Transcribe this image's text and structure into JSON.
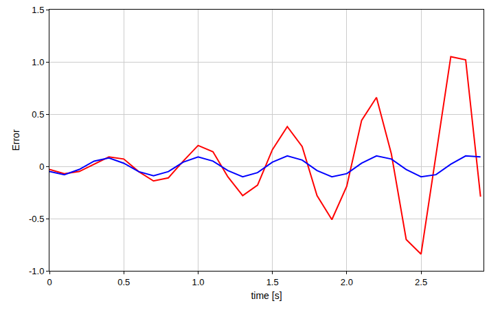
{
  "chart_data": {
    "type": "line",
    "x_label": "time [s]",
    "y_label": "Error",
    "x": [
      0,
      0.1,
      0.2,
      0.3,
      0.4,
      0.5,
      0.6,
      0.7,
      0.8,
      0.9,
      1.0,
      1.1,
      1.2,
      1.3,
      1.4,
      1.5,
      1.6,
      1.7,
      1.8,
      1.9,
      2.0,
      2.1,
      2.2,
      2.3,
      2.4,
      2.5,
      2.6,
      2.7,
      2.8,
      2.9
    ],
    "series": [
      {
        "color": "#ff0000",
        "values": [
          -0.03,
          -0.07,
          -0.05,
          0.02,
          0.09,
          0.07,
          -0.05,
          -0.14,
          -0.11,
          0.05,
          0.2,
          0.14,
          -0.1,
          -0.28,
          -0.18,
          0.16,
          0.38,
          0.19,
          -0.28,
          -0.51,
          -0.19,
          0.44,
          0.66,
          0.12,
          -0.7,
          -0.84,
          0.1,
          1.05,
          1.02,
          -0.29
        ]
      },
      {
        "color": "#0000ff",
        "values": [
          -0.05,
          -0.08,
          -0.03,
          0.05,
          0.08,
          0.03,
          -0.05,
          -0.09,
          -0.05,
          0.04,
          0.09,
          0.05,
          -0.04,
          -0.1,
          -0.06,
          0.04,
          0.1,
          0.06,
          -0.04,
          -0.1,
          -0.07,
          0.03,
          0.1,
          0.07,
          -0.03,
          -0.1,
          -0.08,
          0.02,
          0.1,
          0.09
        ]
      }
    ],
    "xlim": [
      0,
      2.92
    ],
    "ylim": [
      -1,
      1.5
    ],
    "xticks": [
      0,
      0.5,
      {
        "value": 1,
        "label": "1.0"
      },
      1.5,
      {
        "value": 2,
        "label": "2.0"
      },
      2.5
    ],
    "yticks": [
      {
        "value": -1,
        "label": "-1.0"
      },
      -0.5,
      0,
      0.5,
      {
        "value": 1,
        "label": "1.0"
      },
      1.5
    ],
    "grid": true
  }
}
